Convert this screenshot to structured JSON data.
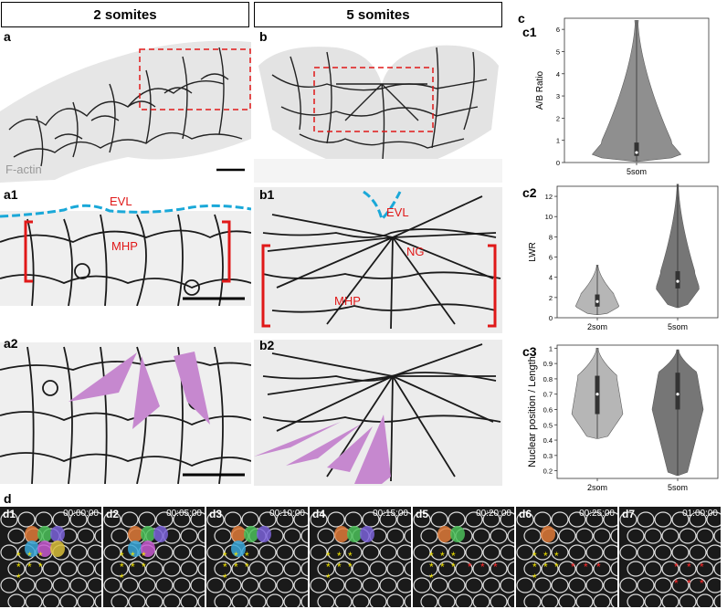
{
  "headers": {
    "left": "2 somites",
    "right": "5 somites"
  },
  "panel_labels": {
    "a": "a",
    "a1": "a1",
    "a2": "a2",
    "b": "b",
    "b1": "b1",
    "b2": "b2",
    "c": "c",
    "c1": "c1",
    "c2": "c2",
    "c3": "c3",
    "d": "d"
  },
  "annotations": {
    "factin": "F-actin",
    "evl_a1": "EVL",
    "mhp_a1": "MHP",
    "evl_b1": "EVL",
    "ng_b1": "NG",
    "mhp_b1": "MHP"
  },
  "timelapse": [
    {
      "id": "d1",
      "time": "00:00:00"
    },
    {
      "id": "d2",
      "time": "00:05:00"
    },
    {
      "id": "d3",
      "time": "00:10:00"
    },
    {
      "id": "d4",
      "time": "00:15:00"
    },
    {
      "id": "d5",
      "time": "00:20:00"
    },
    {
      "id": "d6",
      "time": "00:25:00"
    },
    {
      "id": "d7",
      "time": "01:00:00"
    }
  ],
  "chart_data": [
    {
      "type": "violin",
      "panel": "c1",
      "ylabel": "A/B Ratio",
      "categories": [
        "5som"
      ],
      "ylim": [
        0,
        6.5
      ],
      "yticks": [
        0,
        1,
        2,
        3,
        4,
        5,
        6
      ],
      "series": [
        {
          "category": "5som",
          "min": 0.05,
          "q1": 0.3,
          "median": 0.45,
          "q3": 0.9,
          "max": 6.4
        }
      ]
    },
    {
      "type": "violin",
      "panel": "c2",
      "ylabel": "LWR",
      "categories": [
        "2som",
        "5som"
      ],
      "ylim": [
        0,
        13
      ],
      "yticks": [
        0,
        2,
        4,
        6,
        8,
        10,
        12
      ],
      "series": [
        {
          "category": "2som",
          "min": 0.3,
          "q1": 1.1,
          "median": 1.6,
          "q3": 2.3,
          "max": 5.2
        },
        {
          "category": "5som",
          "min": 1.0,
          "q1": 2.9,
          "median": 3.6,
          "q3": 4.6,
          "max": 13.2
        }
      ]
    },
    {
      "type": "violin",
      "panel": "c3",
      "ylabel": "Nuclear position / Length",
      "categories": [
        "2som",
        "5som"
      ],
      "ylim": [
        0.15,
        1.02
      ],
      "yticks": [
        0.2,
        0.3,
        0.4,
        0.5,
        0.6,
        0.7,
        0.8,
        0.9,
        1.0
      ],
      "series": [
        {
          "category": "2som",
          "min": 0.41,
          "q1": 0.57,
          "median": 0.7,
          "q3": 0.82,
          "max": 1.0
        },
        {
          "category": "5som",
          "min": 0.17,
          "q1": 0.6,
          "median": 0.7,
          "q3": 0.84,
          "max": 0.99
        }
      ]
    }
  ]
}
